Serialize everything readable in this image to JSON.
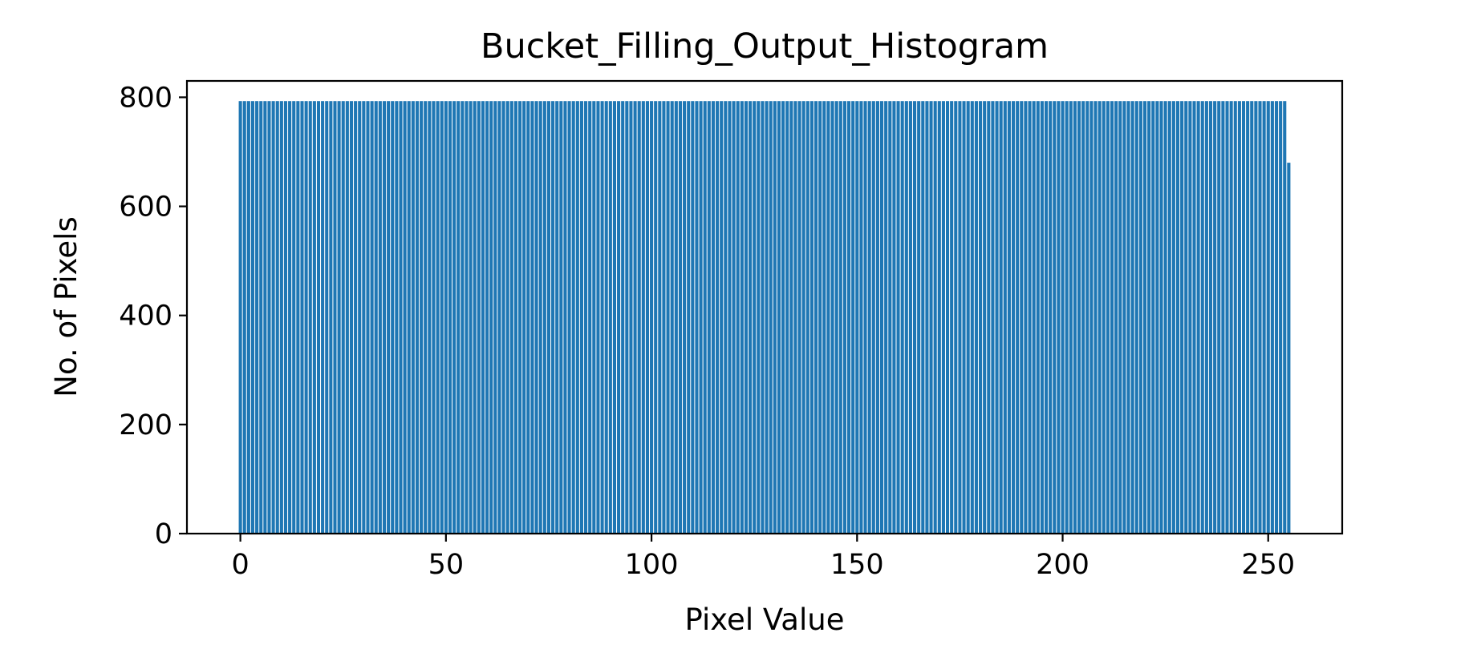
{
  "chart_data": {
    "type": "bar",
    "title": "Bucket_Filling_Output_Histogram",
    "xlabel": "Pixel Value",
    "ylabel": "No. of Pixels",
    "x": {
      "start": 0,
      "end": 255,
      "step": 1
    },
    "values_rule": "bins 0-254 = 793, bin 255 = 680",
    "default_value": 793,
    "last_value": 680,
    "xlim": [
      -13,
      268
    ],
    "ylim": [
      0,
      830
    ],
    "xticks": [
      0,
      50,
      100,
      150,
      200,
      250
    ],
    "yticks": [
      0,
      200,
      400,
      600,
      800
    ],
    "grid": false,
    "legend": "none",
    "bar_color": "#1f77b4"
  }
}
